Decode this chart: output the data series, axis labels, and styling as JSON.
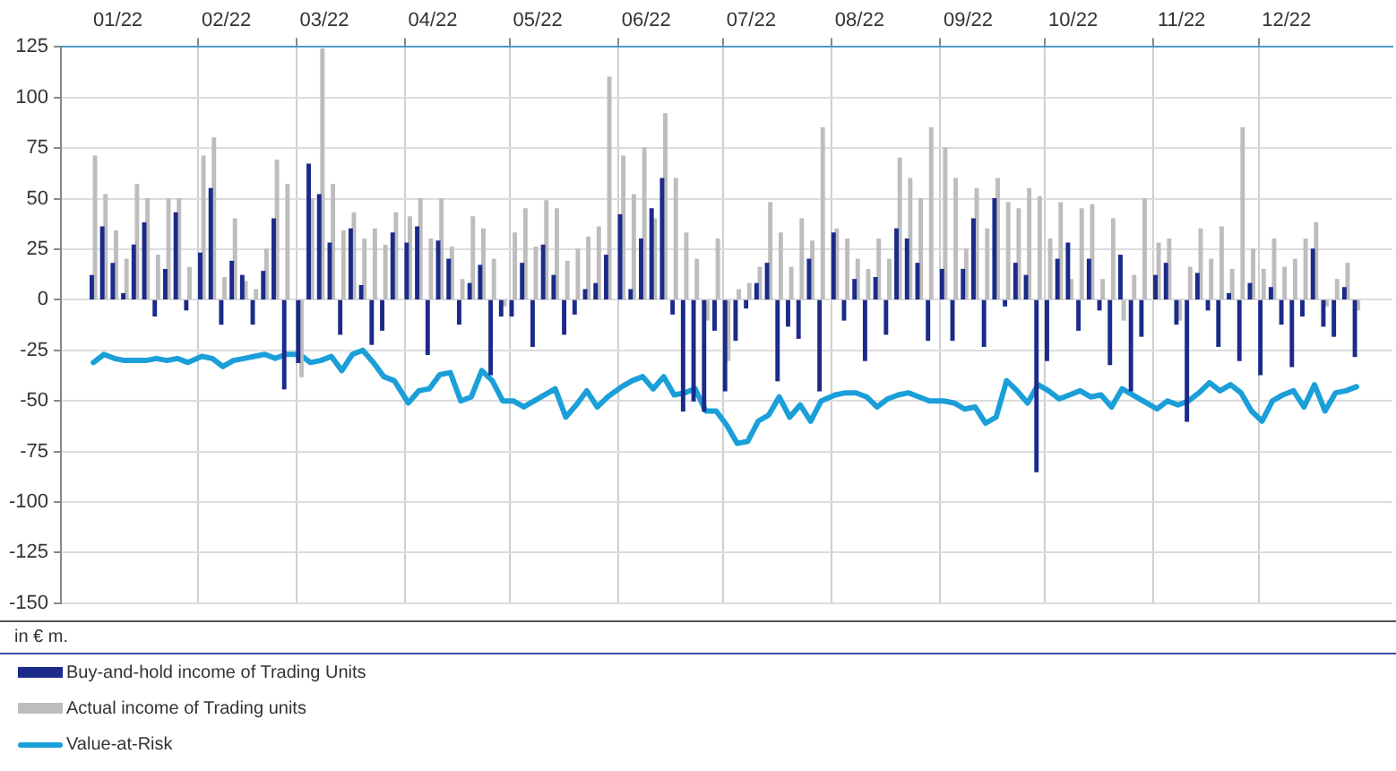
{
  "chart_data": {
    "type": "bar",
    "ylabel": "in € m.",
    "legend": "bottom",
    "grid": true,
    "x": [
      "2022-01-02",
      "2022-01-05",
      "2022-01-08",
      "2022-01-11",
      "2022-01-14",
      "2022-01-17",
      "2022-01-20",
      "2022-01-23",
      "2022-01-26",
      "2022-01-29",
      "2022-02-02",
      "2022-02-05",
      "2022-02-08",
      "2022-02-11",
      "2022-02-14",
      "2022-02-17",
      "2022-02-20",
      "2022-02-23",
      "2022-02-26",
      "2022-03-02",
      "2022-03-05",
      "2022-03-08",
      "2022-03-11",
      "2022-03-14",
      "2022-03-17",
      "2022-03-20",
      "2022-03-23",
      "2022-03-26",
      "2022-03-29",
      "2022-04-02",
      "2022-04-05",
      "2022-04-08",
      "2022-04-11",
      "2022-04-14",
      "2022-04-17",
      "2022-04-20",
      "2022-04-23",
      "2022-04-26",
      "2022-04-29",
      "2022-05-02",
      "2022-05-05",
      "2022-05-08",
      "2022-05-11",
      "2022-05-14",
      "2022-05-17",
      "2022-05-20",
      "2022-05-23",
      "2022-05-26",
      "2022-05-29",
      "2022-06-02",
      "2022-06-05",
      "2022-06-08",
      "2022-06-11",
      "2022-06-14",
      "2022-06-17",
      "2022-06-20",
      "2022-06-23",
      "2022-06-26",
      "2022-06-29",
      "2022-07-02",
      "2022-07-05",
      "2022-07-08",
      "2022-07-11",
      "2022-07-14",
      "2022-07-17",
      "2022-07-20",
      "2022-07-23",
      "2022-07-26",
      "2022-07-29",
      "2022-08-02",
      "2022-08-05",
      "2022-08-08",
      "2022-08-11",
      "2022-08-14",
      "2022-08-17",
      "2022-08-20",
      "2022-08-23",
      "2022-08-26",
      "2022-08-29",
      "2022-09-02",
      "2022-09-05",
      "2022-09-08",
      "2022-09-11",
      "2022-09-14",
      "2022-09-17",
      "2022-09-20",
      "2022-09-23",
      "2022-09-26",
      "2022-09-29",
      "2022-10-02",
      "2022-10-05",
      "2022-10-08",
      "2022-10-11",
      "2022-10-14",
      "2022-10-17",
      "2022-10-20",
      "2022-10-23",
      "2022-10-26",
      "2022-10-29",
      "2022-11-02",
      "2022-11-05",
      "2022-11-08",
      "2022-11-11",
      "2022-11-14",
      "2022-11-17",
      "2022-11-20",
      "2022-11-23",
      "2022-11-26",
      "2022-11-29",
      "2022-12-02",
      "2022-12-05",
      "2022-12-08",
      "2022-12-11",
      "2022-12-14",
      "2022-12-17",
      "2022-12-20",
      "2022-12-23",
      "2022-12-26",
      "2022-12-29"
    ],
    "xlim": [
      "2022-01-01",
      "2022-12-31"
    ],
    "xticks": [
      {
        "value": "2022-01-09",
        "label": "01/22"
      },
      {
        "value": "2022-02-01",
        "label": null
      },
      {
        "value": "2022-02-09",
        "label": "02/22"
      },
      {
        "value": "2022-03-01",
        "label": null
      },
      {
        "value": "2022-03-09",
        "label": "03/22"
      },
      {
        "value": "2022-04-01",
        "label": null
      },
      {
        "value": "2022-04-09",
        "label": "04/22"
      },
      {
        "value": "2022-05-01",
        "label": null
      },
      {
        "value": "2022-05-09",
        "label": "05/22"
      },
      {
        "value": "2022-06-01",
        "label": null
      },
      {
        "value": "2022-06-09",
        "label": "06/22"
      },
      {
        "value": "2022-07-01",
        "label": null
      },
      {
        "value": "2022-07-09",
        "label": "07/22"
      },
      {
        "value": "2022-08-01",
        "label": null
      },
      {
        "value": "2022-08-09",
        "label": "08/22"
      },
      {
        "value": "2022-09-01",
        "label": null
      },
      {
        "value": "2022-09-09",
        "label": "09/22"
      },
      {
        "value": "2022-10-01",
        "label": null
      },
      {
        "value": "2022-10-09",
        "label": "10/22"
      },
      {
        "value": "2022-11-01",
        "label": null
      },
      {
        "value": "2022-11-09",
        "label": "11/22"
      },
      {
        "value": "2022-12-01",
        "label": null
      },
      {
        "value": "2022-12-09",
        "label": "12/22"
      }
    ],
    "ylim": [
      -150,
      125
    ],
    "yticks": [
      -150,
      -125,
      -100,
      -75,
      -50,
      -25,
      0,
      25,
      50,
      75,
      100,
      125
    ],
    "series": [
      {
        "name": "Buy-and-hold income of Trading Units",
        "color": "#1c2a8a",
        "values": [
          12,
          36,
          18,
          3,
          27,
          38,
          -8,
          15,
          43,
          -5,
          23,
          55,
          -12,
          19,
          12,
          -12,
          14,
          40,
          -44,
          -31,
          67,
          52,
          28,
          -17,
          35,
          7,
          -22,
          -15,
          33,
          28,
          36,
          -27,
          29,
          20,
          -12,
          8,
          17,
          -37,
          -8,
          -8,
          18,
          -23,
          27,
          12,
          -17,
          -7,
          5,
          8,
          22,
          42,
          5,
          30,
          45,
          60,
          -7,
          -55,
          -50,
          -55,
          -15,
          -45,
          -20,
          -4,
          8,
          18,
          -40,
          -13,
          -19,
          20,
          -45,
          33,
          -10,
          10,
          -30,
          11,
          -17,
          35,
          30,
          18,
          -20,
          15,
          -20,
          15,
          40,
          -23,
          50,
          -3,
          18,
          12,
          -85,
          -30,
          20,
          28,
          -15,
          20,
          -5,
          -32,
          22,
          -45,
          -18,
          12,
          18,
          -12,
          -60,
          13,
          -5,
          -23,
          3,
          -30,
          8,
          -37,
          6,
          -12,
          -33,
          -8,
          25,
          -13,
          -18,
          6,
          -28
        ]
      },
      {
        "name": "Actual income of Trading units",
        "color": "#bdbdbd",
        "values": [
          71,
          52,
          34,
          20,
          57,
          50,
          22,
          50,
          50,
          16,
          71,
          80,
          11,
          40,
          9,
          5,
          25,
          69,
          57,
          -38,
          50,
          124,
          57,
          34,
          43,
          30,
          35,
          27,
          43,
          41,
          50,
          30,
          50,
          26,
          10,
          41,
          35,
          20,
          -3,
          33,
          45,
          26,
          49,
          45,
          19,
          25,
          31,
          36,
          110,
          71,
          52,
          75,
          40,
          92,
          60,
          33,
          20,
          -10,
          30,
          -30,
          5,
          8,
          16,
          48,
          33,
          16,
          40,
          29,
          85,
          35,
          30,
          20,
          15,
          30,
          20,
          70,
          60,
          50,
          85,
          75,
          60,
          25,
          55,
          35,
          60,
          48,
          45,
          55,
          51,
          30,
          48,
          10,
          45,
          47,
          10,
          40,
          -10,
          12,
          50,
          28,
          30,
          -10,
          16,
          35,
          20,
          36,
          15,
          85,
          25,
          15,
          30,
          16,
          20,
          30,
          38,
          -3,
          10,
          18,
          -5
        ]
      },
      {
        "name": "Value-at-Risk",
        "type": "line",
        "color": "#1a9fd9",
        "values": [
          -31,
          -27,
          -29,
          -30,
          -30,
          -30,
          -29,
          -30,
          -29,
          -31,
          -28,
          -29,
          -33,
          -30,
          -29,
          -28,
          -27,
          -29,
          -27,
          -27,
          -31,
          -30,
          -28,
          -35,
          -27,
          -25,
          -31,
          -38,
          -40,
          -51,
          -45,
          -44,
          -37,
          -36,
          -50,
          -48,
          -35,
          -40,
          -50,
          -50,
          -53,
          -50,
          -47,
          -44,
          -58,
          -52,
          -45,
          -53,
          -48,
          -43,
          -40,
          -38,
          -44,
          -38,
          -47,
          -46,
          -44,
          -55,
          -55,
          -62,
          -71,
          -70,
          -60,
          -57,
          -48,
          -58,
          -52,
          -60,
          -50,
          -47,
          -46,
          -46,
          -48,
          -53,
          -49,
          -47,
          -46,
          -48,
          -50,
          -50,
          -51,
          -54,
          -53,
          -61,
          -58,
          -40,
          -45,
          -51,
          -42,
          -45,
          -49,
          -47,
          -45,
          -48,
          -47,
          -53,
          -44,
          -47,
          -50,
          -54,
          -50,
          -52,
          -50,
          -46,
          -41,
          -45,
          -42,
          -46,
          -55,
          -60,
          -50,
          -47,
          -45,
          -53,
          -42,
          -55,
          -46,
          -45,
          -43
        ]
      }
    ]
  }
}
